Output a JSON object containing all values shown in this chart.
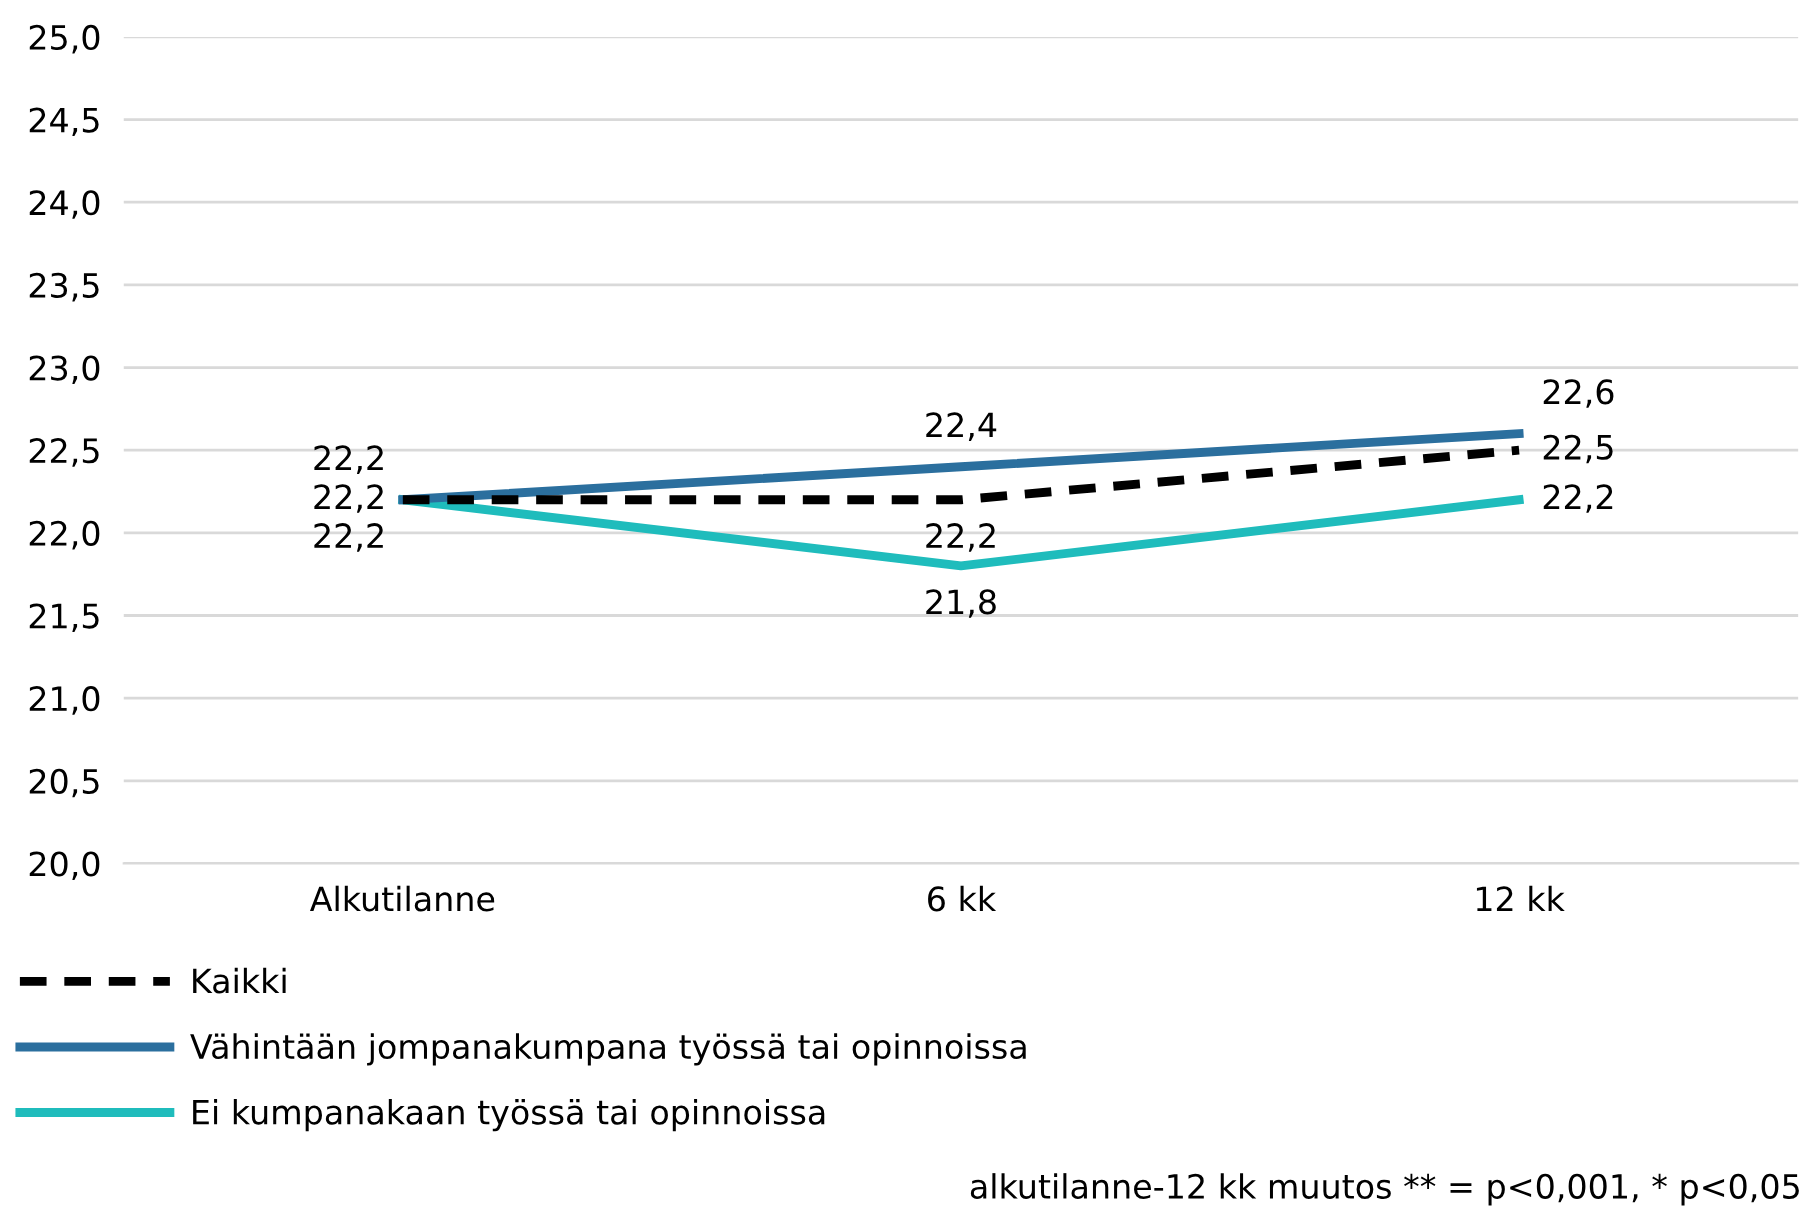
{
  "chart_data": {
    "type": "line",
    "categories": [
      "Alkutilanne",
      "6 kk",
      "12 kk"
    ],
    "series": [
      {
        "name": "Kaikki",
        "color": "#000000",
        "line_style": "dashed",
        "values": [
          22.2,
          22.2,
          22.5
        ],
        "value_labels": [
          "22,2",
          "22,2",
          "22,5"
        ]
      },
      {
        "name": "Vähintään jompanakumpana työssä tai opinnoissa",
        "color": "#2b6f9e",
        "line_style": "solid",
        "values": [
          22.2,
          22.4,
          22.6
        ],
        "value_labels": [
          "22,2",
          "22,4",
          "22,6"
        ]
      },
      {
        "name": "Ei kumpanakaan työssä tai opinnoissa",
        "color": "#1fbcbc",
        "line_style": "solid",
        "values": [
          22.2,
          21.8,
          22.2
        ],
        "value_labels": [
          "22,2",
          "21,8",
          "22,2"
        ]
      }
    ],
    "ylim": [
      20,
      25
    ],
    "yticks": [
      {
        "value": 20,
        "label": "20,0"
      },
      {
        "value": 20.5,
        "label": "20,5"
      },
      {
        "value": 21,
        "label": "21,0"
      },
      {
        "value": 21.5,
        "label": "21,5"
      },
      {
        "value": 22,
        "label": "22,0"
      },
      {
        "value": 22.5,
        "label": "22,5"
      },
      {
        "value": 23,
        "label": "23,0"
      },
      {
        "value": 23.5,
        "label": "23,5"
      },
      {
        "value": 24,
        "label": "24,0"
      },
      {
        "value": 24.5,
        "label": "24,5"
      },
      {
        "value": 25,
        "label": "25,0"
      }
    ],
    "grid": "y",
    "legend": "bottom",
    "marker": "none",
    "annotations": [
      "alkutilanne-12 kk muutos ** = p<0,001, * p<0,05"
    ]
  }
}
